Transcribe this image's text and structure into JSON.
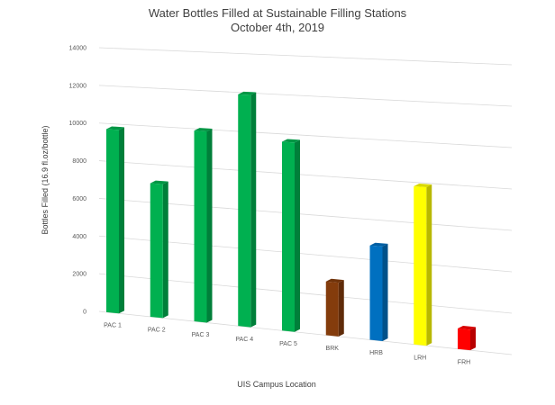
{
  "chart_data": {
    "type": "bar",
    "title": "Water Bottles Filled at Sustainable Filling Stations",
    "subtitle": "October 4th, 2019",
    "xlabel": "UIS Campus Location",
    "ylabel": "Bottles Filled (16.9 fl.oz/bottle)",
    "categories": [
      "PAC 1",
      "PAC 2",
      "PAC 3",
      "PAC 4",
      "PAC 5",
      "BRK",
      "HRB",
      "LRH",
      "FRH"
    ],
    "values": [
      9700,
      7000,
      9900,
      11900,
      9600,
      2700,
      4700,
      7800,
      1000
    ],
    "colors": [
      "#00b050",
      "#00b050",
      "#00b050",
      "#00b050",
      "#00b050",
      "#843c0c",
      "#0070c0",
      "#ffff00",
      "#ff0000"
    ],
    "yticks": [
      0,
      2000,
      4000,
      6000,
      8000,
      10000,
      12000,
      14000
    ],
    "ylim": [
      0,
      14000
    ],
    "grid": true,
    "legend": "none"
  }
}
